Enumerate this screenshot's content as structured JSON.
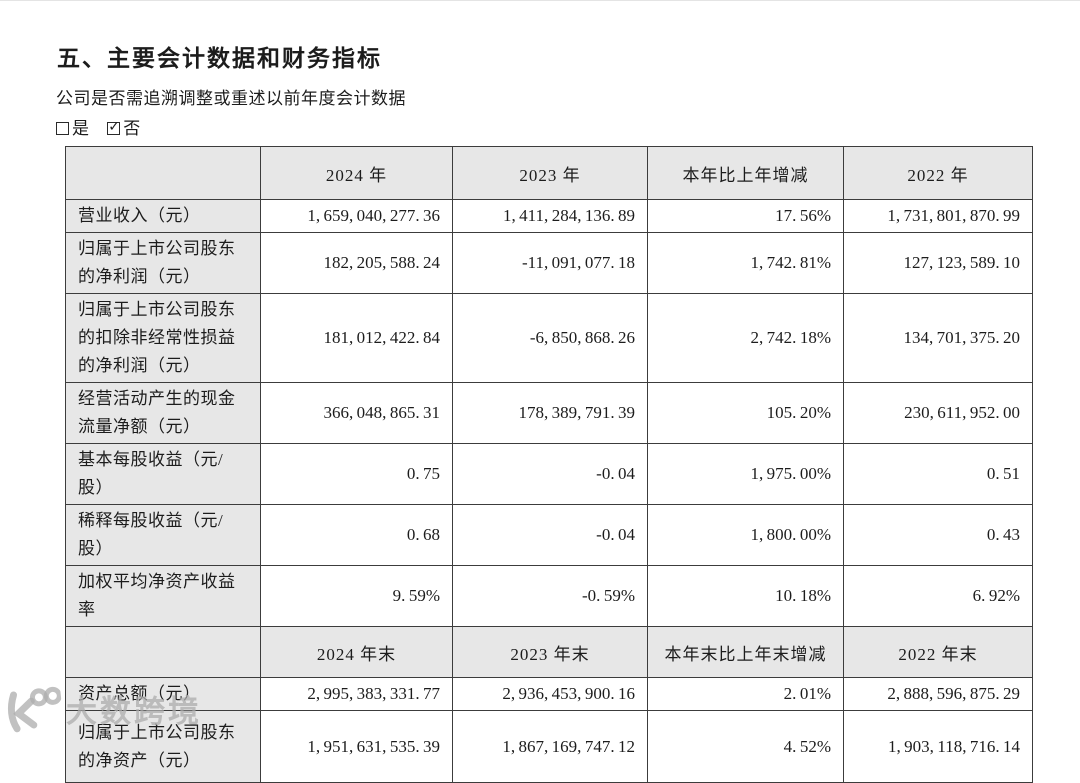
{
  "document": {
    "section_title": "五、主要会计数据和财务指标",
    "question": "公司是否需追溯调整或重述以前年度会计数据",
    "options": [
      {
        "label": "是",
        "checked": false
      },
      {
        "label": "否",
        "checked": true
      }
    ]
  },
  "table": {
    "sections": [
      {
        "header": [
          "",
          "2024 年",
          "2023 年",
          "本年比上年增减",
          "2022 年"
        ],
        "rows": [
          {
            "label": "营业收入（元）",
            "values": [
              "1,659,040,277.36",
              "1,411,284,136.89",
              "17.56%",
              "1,731,801,870.99"
            ]
          },
          {
            "label": "归属于上市公司股东的净利润（元）",
            "values": [
              "182,205,588.24",
              "-11,091,077.18",
              "1,742.81%",
              "127,123,589.10"
            ]
          },
          {
            "label": "归属于上市公司股东的扣除非经常性损益的净利润（元）",
            "values": [
              "181,012,422.84",
              "-6,850,868.26",
              "2,742.18%",
              "134,701,375.20"
            ]
          },
          {
            "label": "经营活动产生的现金流量净额（元）",
            "values": [
              "366,048,865.31",
              "178,389,791.39",
              "105.20%",
              "230,611,952.00"
            ]
          },
          {
            "label": "基本每股收益（元/股）",
            "values": [
              "0.75",
              "-0.04",
              "1,975.00%",
              "0.51"
            ]
          },
          {
            "label": "稀释每股收益（元/股）",
            "values": [
              "0.68",
              "-0.04",
              "1,800.00%",
              "0.43"
            ]
          },
          {
            "label": "加权平均净资产收益率",
            "values": [
              "9.59%",
              "-0.59%",
              "10.18%",
              "6.92%"
            ]
          }
        ]
      },
      {
        "header": [
          "",
          "2024 年末",
          "2023 年末",
          "本年末比上年末增减",
          "2022 年末"
        ],
        "rows": [
          {
            "label": "资产总额（元）",
            "values": [
              "2,995,383,331.77",
              "2,936,453,900.16",
              "2.01%",
              "2,888,596,875.29"
            ]
          },
          {
            "label": "归属于上市公司股东的净资产（元）",
            "values": [
              "1,951,631,535.39",
              "1,867,169,747.12",
              "4.52%",
              "1,903,118,716.14"
            ]
          }
        ]
      }
    ]
  },
  "watermark": {
    "brand": "大数跨境"
  },
  "colors": {
    "header_cell_bg": "#e7e7e7",
    "table_border": "#3c3c3c",
    "page_bg": "#ffffff",
    "watermark": "#acacac"
  }
}
